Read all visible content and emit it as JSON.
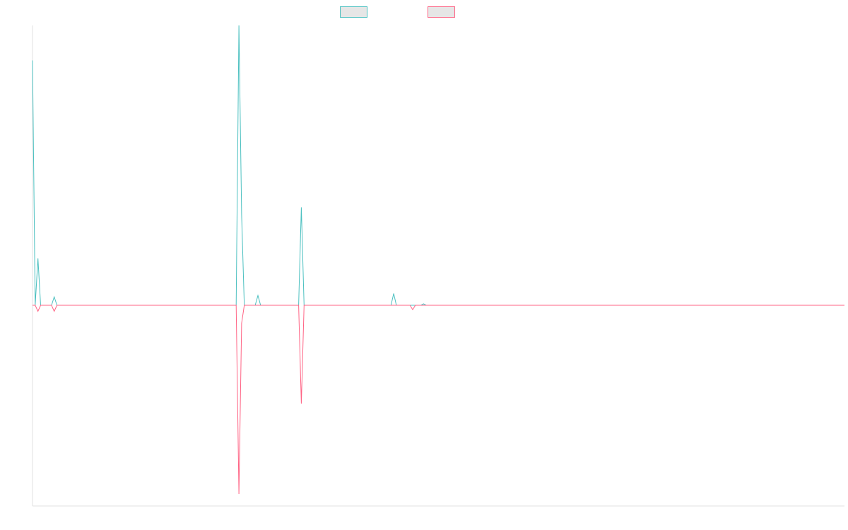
{
  "chart_data": {
    "type": "line",
    "title": "",
    "xlabel": "",
    "ylabel": "",
    "ylim": [
      -100,
      100
    ],
    "grid": false,
    "legend": "top-center",
    "colors": {
      "series_0": "#4bc0c0",
      "series_1": "#ff6384",
      "legend_fill": "#e6e6e6",
      "axis": "#e0e0e0"
    },
    "series": [
      {
        "color": "#4bc0c0",
        "values": [
          87.5,
          0,
          16.8,
          0,
          0,
          0,
          0,
          0,
          3,
          0,
          0,
          0,
          0,
          0,
          0,
          0,
          0,
          0,
          0,
          0,
          0,
          0,
          0,
          0,
          0,
          0,
          0,
          0,
          0,
          0,
          0,
          0,
          0,
          0,
          0,
          0,
          0,
          0,
          0,
          0,
          0,
          0,
          0,
          0,
          0,
          0,
          0,
          0,
          0,
          0,
          0,
          0,
          0,
          0,
          0,
          0,
          0,
          0,
          0,
          0,
          0,
          0,
          0,
          0,
          0,
          0,
          0,
          0,
          0,
          0,
          0,
          0,
          0,
          0,
          0,
          0,
          100,
          32.5,
          0,
          0,
          0,
          0,
          0,
          3.5,
          0,
          0,
          0,
          0,
          0,
          0,
          0,
          0,
          0,
          0,
          0,
          0,
          0,
          0,
          0,
          35,
          0,
          0,
          0,
          0,
          0,
          0,
          0,
          0,
          0,
          0,
          0,
          0,
          0,
          0,
          0,
          0,
          0,
          0,
          0,
          0,
          0,
          0,
          0,
          0,
          0,
          0,
          0,
          0,
          0,
          0,
          0,
          0,
          0,
          4.2,
          0,
          0,
          0,
          0,
          0,
          0,
          0,
          0,
          0,
          0,
          0.5,
          0,
          0,
          0,
          0,
          0,
          0,
          0,
          0,
          0,
          0,
          0,
          0,
          0,
          0,
          0,
          0,
          0,
          0,
          0,
          0,
          0,
          0,
          0,
          0,
          0,
          0,
          0,
          0,
          0,
          0,
          0,
          0,
          0,
          0,
          0,
          0,
          0,
          0,
          0,
          0,
          0,
          0,
          0,
          0,
          0,
          0,
          0,
          0,
          0,
          0,
          0,
          0,
          0,
          0,
          0,
          0,
          0,
          0,
          0,
          0,
          0,
          0,
          0,
          0,
          0,
          0,
          0,
          0,
          0,
          0,
          0,
          0,
          0,
          0,
          0,
          0,
          0,
          0,
          0,
          0,
          0,
          0,
          0,
          0,
          0,
          0,
          0,
          0,
          0,
          0,
          0,
          0,
          0,
          0,
          0,
          0,
          0,
          0,
          0,
          0,
          0,
          0,
          0,
          0,
          0,
          0,
          0,
          0,
          0,
          0,
          0,
          0,
          0,
          0,
          0,
          0,
          0,
          0,
          0,
          0,
          0,
          0,
          0,
          0,
          0,
          0,
          0,
          0,
          0,
          0,
          0,
          0,
          0,
          0,
          0,
          0,
          0,
          0,
          0,
          0,
          0,
          0,
          0,
          0,
          0,
          0,
          0,
          0,
          0,
          0,
          0,
          0,
          0,
          0,
          0
        ]
      },
      {
        "color": "#ff6384",
        "values": [
          0,
          0,
          -3,
          0,
          0,
          0,
          0,
          0,
          -3,
          0,
          0,
          0,
          0,
          0,
          0,
          0,
          0,
          0,
          0,
          0,
          0,
          0,
          0,
          0,
          0,
          0,
          0,
          0,
          0,
          0,
          0,
          0,
          0,
          0,
          0,
          0,
          0,
          0,
          0,
          0,
          0,
          0,
          0,
          0,
          0,
          0,
          0,
          0,
          0,
          0,
          0,
          0,
          0,
          0,
          0,
          0,
          0,
          0,
          0,
          0,
          0,
          0,
          0,
          0,
          0,
          0,
          0,
          0,
          0,
          0,
          0,
          0,
          0,
          0,
          0,
          0,
          -94,
          -9,
          0,
          0,
          0,
          0,
          0,
          0,
          0,
          0,
          0,
          0,
          0,
          0,
          0,
          0,
          0,
          0,
          0,
          0,
          0,
          0,
          0,
          -49,
          0,
          0,
          0,
          0,
          0,
          0,
          0,
          0,
          0,
          0,
          0,
          0,
          0,
          0,
          0,
          0,
          0,
          0,
          0,
          0,
          0,
          0,
          0,
          0,
          0,
          0,
          0,
          0,
          0,
          0,
          0,
          0,
          0,
          0,
          0,
          0,
          0,
          0,
          0,
          0,
          -2.2,
          0,
          0,
          0,
          0,
          0,
          0,
          0,
          0,
          0,
          0,
          0,
          0,
          0,
          0,
          0,
          0,
          0,
          0,
          0,
          0,
          0,
          0,
          0,
          0,
          0,
          0,
          0,
          0,
          0,
          0,
          0,
          0,
          0,
          0,
          0,
          0,
          0,
          0,
          0,
          0,
          0,
          0,
          0,
          0,
          0,
          0,
          0,
          0,
          0,
          0,
          0,
          0,
          0,
          0,
          0,
          0,
          0,
          0,
          0,
          0,
          0,
          0,
          0,
          0,
          0,
          0,
          0,
          0,
          0,
          0,
          0,
          0,
          0,
          0,
          0,
          0,
          0,
          0,
          0,
          0,
          0,
          0,
          0,
          0,
          0,
          0,
          0,
          0,
          0,
          0,
          0,
          0,
          0,
          0,
          0,
          0,
          0,
          0,
          0,
          0,
          0,
          0,
          0,
          0,
          0,
          0,
          0,
          0,
          0,
          0,
          0,
          0,
          0,
          0,
          0,
          0,
          0,
          0,
          0,
          0,
          0,
          0,
          0,
          0,
          0,
          0,
          0,
          0,
          0,
          0,
          0,
          0,
          0,
          0,
          0,
          0,
          0,
          0,
          0,
          0,
          0,
          0,
          0,
          0,
          0,
          0,
          0,
          0,
          0,
          0,
          0,
          0,
          0,
          0,
          0,
          0,
          0,
          0,
          0
        ]
      }
    ]
  }
}
